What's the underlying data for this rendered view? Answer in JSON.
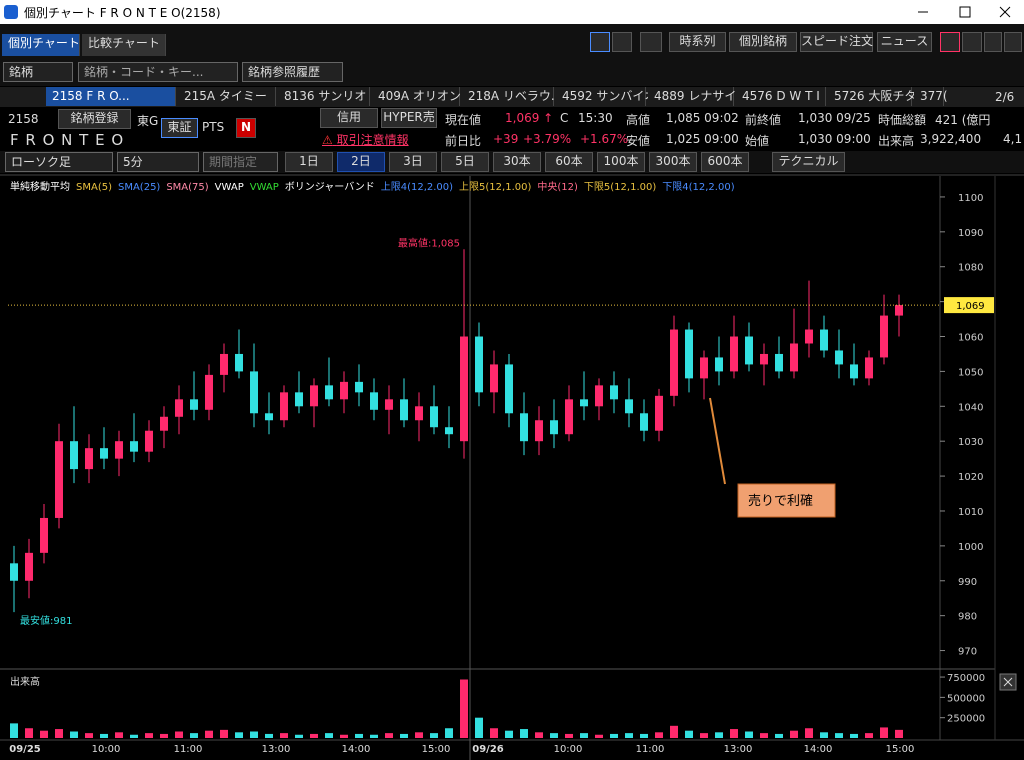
{
  "window": {
    "title": "個別チャート F R O N T E O(2158)"
  },
  "tabs": [
    "個別チャート",
    "比較チャート"
  ],
  "toolbar_buttons": [
    "時系列",
    "個別銘柄",
    "スピード注文",
    "ニュース"
  ],
  "search": {
    "label": "銘柄",
    "placeholder": "銘柄・コード・キー...",
    "history": "銘柄参照履歴"
  },
  "stock_tabs": [
    "2158 F R O...",
    "215A タイミー",
    "8136 サンリオ",
    "409A オリオン...",
    "218A リベラウ...",
    "4592 サンバイオ",
    "4889 レナサイ...",
    "4576 D W T I",
    "5726 大阪チタ",
    "377("
  ],
  "page_indicator": "2/6",
  "quote": {
    "code": "2158",
    "register": "銘柄登録",
    "market": "東G",
    "exchange": "東証",
    "pts": "PTS",
    "n": "N",
    "margin": "信用",
    "hyper": "HYPER売",
    "name": "F R O N T E O",
    "warning": "取引注意情報",
    "current_label": "現在値",
    "current": "1,069 ↑",
    "c": "C",
    "time": "15:30",
    "high_label": "高値",
    "high": "1,085 09:02",
    "prev_label": "前終値",
    "prev": "1,030 09/25",
    "cap_label": "時価総額",
    "cap": "421 (億円",
    "change_label": "前日比",
    "change": "+39",
    "change_pct": "+3.79%",
    "change_pct2": "+1.67%",
    "low_label": "安値",
    "low": "1,025 09:00",
    "open_label": "始値",
    "open": "1,030 09:00",
    "volume_label": "出来高",
    "volume": "3,922,400",
    "volume2": "4,1"
  },
  "chart_controls": {
    "chart_type": "ローソク足",
    "interval": "5分",
    "period": "期間指定",
    "ranges": [
      "1日",
      "2日",
      "3日",
      "5日",
      "30本",
      "60本",
      "100本",
      "300本",
      "600本"
    ],
    "technical": "テクニカル"
  },
  "chart_data": {
    "type": "candlestick",
    "legend": [
      {
        "text": "単純移動平均",
        "color": "#ffffff"
      },
      {
        "text": "SMA(5)",
        "color": "#e8c040"
      },
      {
        "text": "SMA(25)",
        "color": "#4a8cff"
      },
      {
        "text": "SMA(75)",
        "color": "#ff8aa8"
      },
      {
        "text": "VWAP",
        "color": "#ffffff"
      },
      {
        "text": "VWAP",
        "color": "#33dd33"
      },
      {
        "text": "ボリンジャーバンド",
        "color": "#ffffff"
      },
      {
        "text": "上限4(12,2.00)",
        "color": "#4a8cff"
      },
      {
        "text": "上限5(12,1.00)",
        "color": "#e8c040"
      },
      {
        "text": "中央(12)",
        "color": "#ff6a8a"
      },
      {
        "text": "下限5(12,1.00)",
        "color": "#e8c040"
      },
      {
        "text": "下限4(12,2.00)",
        "color": "#4a8cff"
      }
    ],
    "up_color": "#ff2a6d",
    "down_color": "#33e0e0",
    "ylim": [
      965,
      1106
    ],
    "yticks": [
      970,
      980,
      990,
      1000,
      1010,
      1020,
      1030,
      1040,
      1050,
      1060,
      1070,
      1080,
      1090,
      1100
    ],
    "open": [
      995,
      990,
      998,
      1008,
      1030,
      1022,
      1028,
      1025,
      1030,
      1027,
      1033,
      1037,
      1042,
      1039,
      1049,
      1055,
      1050,
      1038,
      1036,
      1044,
      1040,
      1046,
      1042,
      1047,
      1044,
      1039,
      1042,
      1036,
      1040,
      1034,
      1030,
      1060,
      1044,
      1052,
      1038,
      1030,
      1036,
      1032,
      1042,
      1040,
      1046,
      1042,
      1038,
      1033,
      1043,
      1062,
      1048,
      1054,
      1050,
      1060,
      1052,
      1055,
      1050,
      1058,
      1062,
      1056,
      1052,
      1048,
      1054,
      1066
    ],
    "high": [
      1000,
      1002,
      1012,
      1035,
      1040,
      1032,
      1034,
      1033,
      1038,
      1036,
      1040,
      1046,
      1050,
      1052,
      1058,
      1062,
      1058,
      1044,
      1046,
      1050,
      1048,
      1054,
      1050,
      1052,
      1048,
      1046,
      1048,
      1044,
      1046,
      1040,
      1085,
      1064,
      1056,
      1055,
      1044,
      1040,
      1042,
      1046,
      1050,
      1048,
      1050,
      1048,
      1042,
      1045,
      1066,
      1064,
      1056,
      1060,
      1066,
      1064,
      1058,
      1060,
      1068,
      1076,
      1066,
      1062,
      1058,
      1056,
      1072,
      1072
    ],
    "low": [
      981,
      985,
      995,
      1005,
      1018,
      1018,
      1022,
      1020,
      1024,
      1024,
      1028,
      1032,
      1036,
      1036,
      1044,
      1048,
      1034,
      1032,
      1034,
      1038,
      1034,
      1040,
      1038,
      1040,
      1036,
      1032,
      1034,
      1030,
      1032,
      1028,
      1025,
      1040,
      1038,
      1034,
      1026,
      1026,
      1028,
      1030,
      1036,
      1036,
      1038,
      1034,
      1030,
      1030,
      1040,
      1044,
      1042,
      1046,
      1048,
      1050,
      1046,
      1048,
      1048,
      1054,
      1054,
      1048,
      1046,
      1046,
      1052,
      1060
    ],
    "close": [
      990,
      998,
      1008,
      1030,
      1022,
      1028,
      1025,
      1030,
      1027,
      1033,
      1037,
      1042,
      1039,
      1049,
      1055,
      1050,
      1038,
      1036,
      1044,
      1040,
      1046,
      1042,
      1047,
      1044,
      1039,
      1042,
      1036,
      1040,
      1034,
      1032,
      1060,
      1044,
      1052,
      1038,
      1030,
      1036,
      1032,
      1042,
      1040,
      1046,
      1042,
      1038,
      1033,
      1043,
      1062,
      1048,
      1054,
      1050,
      1060,
      1052,
      1055,
      1050,
      1058,
      1062,
      1056,
      1052,
      1048,
      1054,
      1066,
      1069
    ],
    "volume_title": "出来高",
    "vlim": [
      0,
      800000
    ],
    "vticks": [
      250000,
      500000,
      750000
    ],
    "volumes": [
      180000,
      120000,
      90000,
      110000,
      80000,
      60000,
      50000,
      70000,
      40000,
      60000,
      50000,
      80000,
      60000,
      90000,
      100000,
      70000,
      80000,
      50000,
      60000,
      40000,
      50000,
      60000,
      40000,
      50000,
      40000,
      60000,
      50000,
      70000,
      60000,
      120000,
      720000,
      250000,
      120000,
      90000,
      110000,
      70000,
      60000,
      50000,
      60000,
      40000,
      50000,
      60000,
      50000,
      70000,
      150000,
      90000,
      60000,
      70000,
      110000,
      80000,
      60000,
      50000,
      90000,
      120000,
      70000,
      60000,
      50000,
      60000,
      130000,
      100000
    ],
    "current": {
      "value": 1069,
      "label": "1,069"
    },
    "high_annotation": "最高値:1,085",
    "low_annotation": "最安値:981",
    "note": "売りで利確",
    "time_labels": [
      "09/25",
      "10:00",
      "11:00",
      "13:00",
      "14:00",
      "15:00",
      "09/26",
      "10:00",
      "11:00",
      "13:00",
      "14:00",
      "15:00"
    ]
  }
}
